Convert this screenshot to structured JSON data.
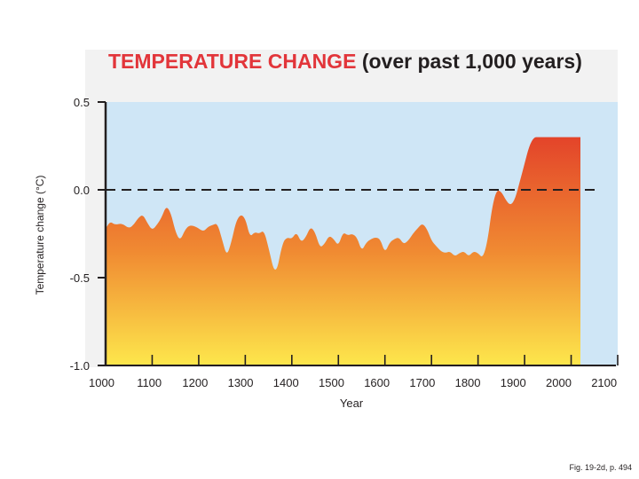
{
  "chart_data": {
    "type": "area",
    "title": "TEMPERATURE CHANGE",
    "title_suffix": "(over past 1,000 years)",
    "xlabel": "Year",
    "ylabel": "Temperature change (°C)",
    "xlim": [
      1000,
      2100
    ],
    "ylim": [
      -1.0,
      0.5
    ],
    "x_ticks": [
      1000,
      1100,
      1200,
      1300,
      1400,
      1500,
      1600,
      1700,
      1800,
      1900,
      2000,
      2100
    ],
    "x_tick_labels": [
      "1000",
      "1100",
      "1200",
      "1300",
      "1400",
      "1500",
      "1600",
      "1700",
      "1800",
      "1900",
      "2000",
      "2100"
    ],
    "y_ticks": [
      0.5,
      0.0,
      -0.5,
      -1.0
    ],
    "y_tick_labels": [
      "0.5",
      "0.0",
      "-0.5",
      "-1.0"
    ],
    "reference_line": {
      "y": 0.0,
      "style": "dashed"
    },
    "series": [
      {
        "name": "Temperature change",
        "x": [
          1000,
          1010,
          1020,
          1035,
          1050,
          1060,
          1070,
          1080,
          1090,
          1100,
          1110,
          1120,
          1130,
          1140,
          1150,
          1160,
          1170,
          1180,
          1195,
          1210,
          1220,
          1230,
          1240,
          1250,
          1260,
          1270,
          1280,
          1290,
          1300,
          1310,
          1320,
          1330,
          1340,
          1350,
          1365,
          1380,
          1390,
          1400,
          1410,
          1420,
          1430,
          1440,
          1450,
          1460,
          1470,
          1480,
          1490,
          1500,
          1510,
          1520,
          1530,
          1540,
          1550,
          1560,
          1570,
          1580,
          1590,
          1600,
          1610,
          1620,
          1630,
          1640,
          1650,
          1660,
          1670,
          1680,
          1690,
          1700,
          1710,
          1720,
          1730,
          1740,
          1750,
          1760,
          1770,
          1780,
          1790,
          1800,
          1810,
          1820,
          1830,
          1840,
          1850,
          1860,
          1870,
          1880,
          1890,
          1900,
          1910,
          1920,
          1930,
          1940,
          1950,
          1960,
          1970,
          1980,
          1990,
          2000,
          2010,
          2020
        ],
        "values": [
          -0.22,
          -0.18,
          -0.2,
          -0.19,
          -0.22,
          -0.2,
          -0.16,
          -0.14,
          -0.19,
          -0.23,
          -0.2,
          -0.16,
          -0.09,
          -0.13,
          -0.24,
          -0.29,
          -0.23,
          -0.2,
          -0.21,
          -0.24,
          -0.21,
          -0.2,
          -0.19,
          -0.28,
          -0.38,
          -0.3,
          -0.18,
          -0.14,
          -0.16,
          -0.27,
          -0.24,
          -0.25,
          -0.23,
          -0.33,
          -0.5,
          -0.3,
          -0.27,
          -0.28,
          -0.24,
          -0.3,
          -0.27,
          -0.21,
          -0.24,
          -0.33,
          -0.31,
          -0.26,
          -0.28,
          -0.32,
          -0.24,
          -0.26,
          -0.25,
          -0.27,
          -0.35,
          -0.3,
          -0.28,
          -0.27,
          -0.28,
          -0.36,
          -0.3,
          -0.28,
          -0.27,
          -0.31,
          -0.29,
          -0.25,
          -0.22,
          -0.19,
          -0.22,
          -0.29,
          -0.32,
          -0.35,
          -0.36,
          -0.35,
          -0.38,
          -0.36,
          -0.35,
          -0.38,
          -0.35,
          -0.36,
          -0.39,
          -0.3,
          -0.1,
          0.0,
          -0.01,
          -0.06,
          -0.09,
          -0.05,
          0.05,
          0.15,
          0.25,
          0.3,
          0.3,
          0.3,
          0.3,
          0.3,
          0.3,
          0.3,
          0.3,
          0.3,
          0.3,
          0.3
        ]
      }
    ]
  },
  "footer": {
    "caption": "Fig. 19-2d, p. 494"
  },
  "colors": {
    "sky": "#cfe6f6",
    "fill_top": "#e3442a",
    "fill_mid": "#f08a32",
    "fill_bottom": "#fde74c",
    "title_red": "#e2353a",
    "axis": "#231f20"
  }
}
